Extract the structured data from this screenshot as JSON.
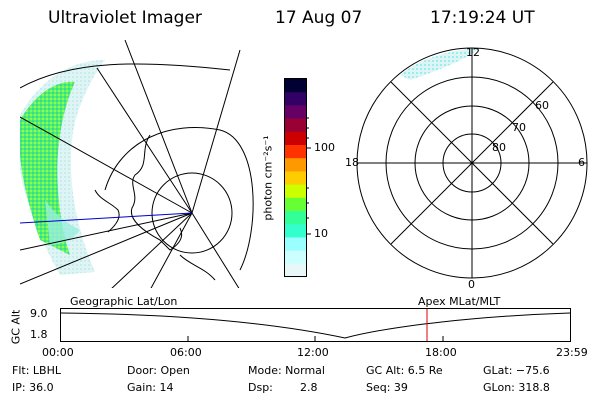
{
  "header": {
    "title": "Ultraviolet Imager",
    "date": "17 Aug 07",
    "time": "17:19:24 UT"
  },
  "colorbar": {
    "unit_label": "photon cm⁻²s⁻¹",
    "ticks": [
      "100",
      "10"
    ],
    "colors": [
      "#000033",
      "#330066",
      "#660066",
      "#990033",
      "#cc0000",
      "#ff3300",
      "#ff9900",
      "#ffcc00",
      "#ccff00",
      "#66ff33",
      "#33ff99",
      "#33ffcc",
      "#99ffff",
      "#ccffff",
      "#e8f8f8"
    ]
  },
  "right_polar": {
    "labels": {
      "top": "12",
      "bottom": "0",
      "left": "18",
      "right": "6",
      "r60": "60",
      "r70": "70",
      "r80": "80"
    }
  },
  "altitude_strip": {
    "left_label": "Geographic Lat/Lon",
    "right_label": "Apex MLat/MLT",
    "ylabel": "GC Alt",
    "y_ticks": [
      "9.0",
      "1.8"
    ],
    "x_ticks": [
      "00:00",
      "06:00",
      "12:00",
      "18:00",
      "23:59"
    ],
    "current_marker_color": "#dd0000"
  },
  "info": {
    "row1": [
      {
        "key": "Flt: LBHL"
      },
      {
        "key": "Door: Open"
      },
      {
        "key": "Mode: Normal"
      },
      {
        "key": "GC Alt: 6.5 Re"
      },
      {
        "key": "GLat: −75.6"
      }
    ],
    "row2": [
      {
        "key": "IP: 36.0"
      },
      {
        "key": "Gain: 14"
      },
      {
        "key": "Dsp:",
        "val": "2.8"
      },
      {
        "key": "Seq: 39"
      },
      {
        "key": "GLon: 318.8"
      }
    ]
  }
}
